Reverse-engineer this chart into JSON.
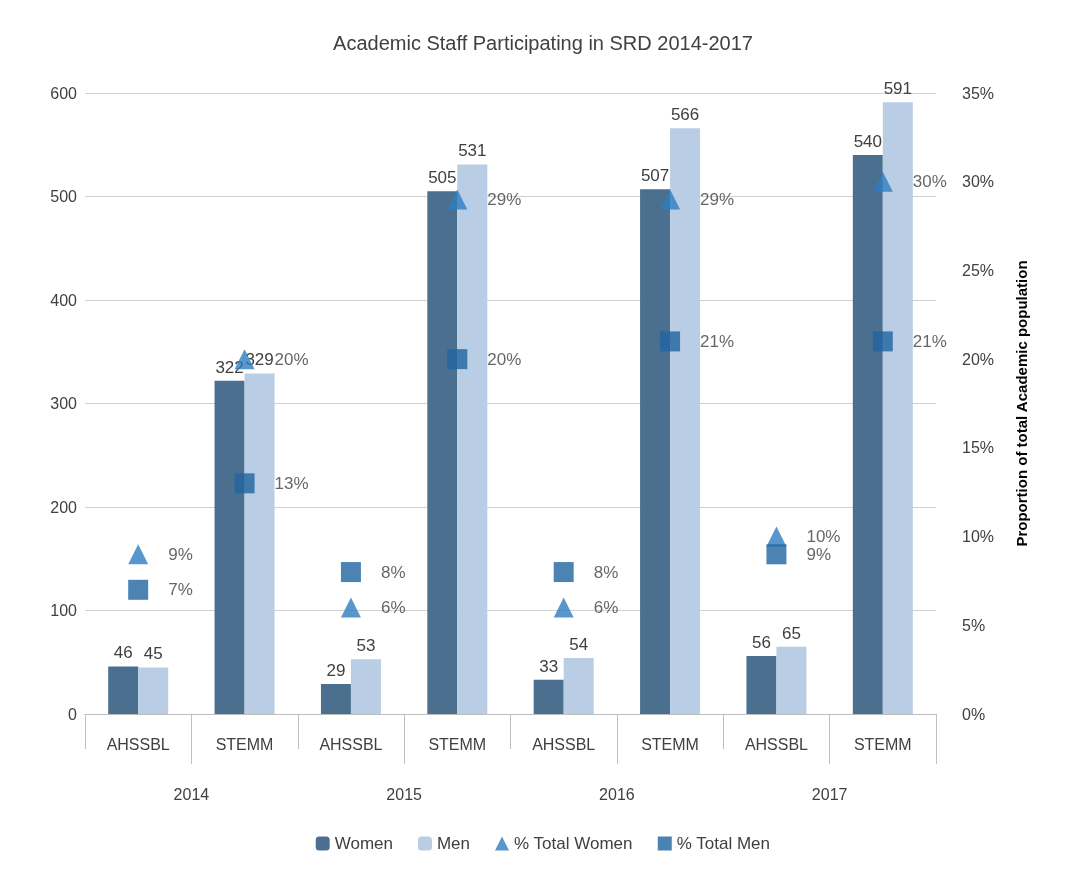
{
  "chart_data": {
    "type": "bar",
    "title": "Academic Staff Participating in SRD 2014-2017",
    "categories": [
      "AHSSBL",
      "STEMM",
      "AHSSBL",
      "STEMM",
      "AHSSBL",
      "STEMM",
      "AHSSBL",
      "STEMM"
    ],
    "annotations": [
      "2014",
      "2015",
      "2016",
      "2017"
    ],
    "y2label": "Proportion of total Academic population",
    "ylim": [
      0,
      600
    ],
    "yticks": [
      0,
      100,
      200,
      300,
      400,
      500,
      600
    ],
    "y2lim": [
      0,
      35
    ],
    "y2ticks": [
      {
        "value": 0,
        "label": "0%"
      },
      {
        "value": 5,
        "label": "5%"
      },
      {
        "value": 10,
        "label": "10%"
      },
      {
        "value": 15,
        "label": "15%"
      },
      {
        "value": 20,
        "label": "20%"
      },
      {
        "value": 25,
        "label": "25%"
      },
      {
        "value": 30,
        "label": "30%"
      },
      {
        "value": 35,
        "label": "35%"
      }
    ],
    "grid": "y",
    "legend": "bottom",
    "data_labels": true,
    "series": [
      {
        "name": "Women",
        "type": "bar",
        "color": "#4a6f8f",
        "values": [
          46,
          322,
          29,
          505,
          33,
          507,
          56,
          540
        ]
      },
      {
        "name": "Men",
        "type": "bar",
        "color": "#b9cde4",
        "values": [
          45,
          329,
          53,
          531,
          54,
          566,
          65,
          591
        ]
      },
      {
        "name": "% Total Women",
        "type": "scatter",
        "axis": "y2",
        "marker": "triangle",
        "color": "#2e7dc0",
        "values": [
          9,
          20,
          6,
          29,
          6,
          29,
          10,
          30
        ],
        "value_labels": [
          "9%",
          "20%",
          "6%",
          "29%",
          "6%",
          "29%",
          "10%",
          "30%"
        ]
      },
      {
        "name": "% Total Men",
        "type": "scatter",
        "axis": "y2",
        "marker": "square",
        "color": "#1f64a0",
        "values": [
          7,
          13,
          8,
          20,
          8,
          21,
          9,
          21
        ],
        "value_labels": [
          "7%",
          "13%",
          "8%",
          "20%",
          "8%",
          "21%",
          "9%",
          "21%"
        ]
      }
    ]
  }
}
